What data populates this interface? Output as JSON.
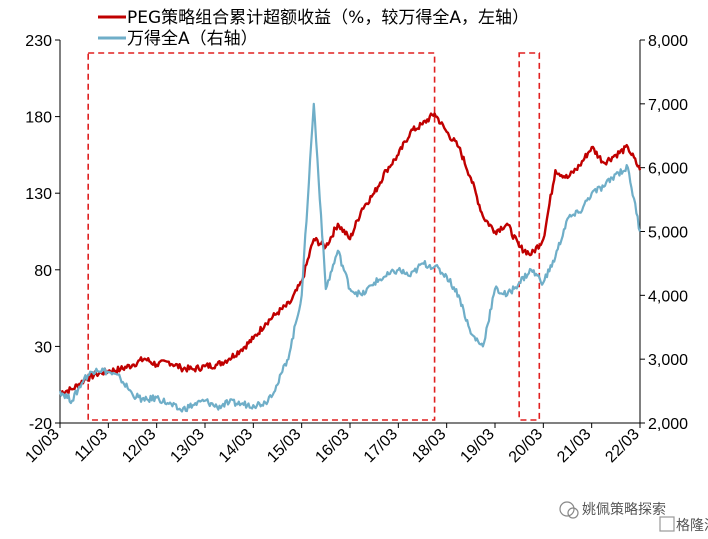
{
  "chart_data": {
    "type": "line",
    "x_ticks": [
      "10/03",
      "11/03",
      "12/03",
      "13/03",
      "14/03",
      "15/03",
      "16/03",
      "17/03",
      "18/03",
      "19/03",
      "20/03",
      "21/03",
      "22/03"
    ],
    "y_left": {
      "ticks": [
        -20,
        30,
        80,
        130,
        180,
        230
      ],
      "range": [
        -20,
        230
      ]
    },
    "y_right": {
      "ticks": [
        "2,000",
        "3,000",
        "4,000",
        "5,000",
        "6,000",
        "7,000",
        "8,000"
      ],
      "range": [
        2000,
        8000
      ]
    },
    "series": [
      {
        "name": "PEG策略组合累计超额收益（%，较万得全A，左轴）",
        "axis": "left",
        "color": "#C00000",
        "points": [
          [
            "2010-03",
            0
          ],
          [
            "2010-06",
            2
          ],
          [
            "2010-09",
            8
          ],
          [
            "2010-12",
            12
          ],
          [
            "2011-03",
            14
          ],
          [
            "2011-06",
            15
          ],
          [
            "2011-09",
            18
          ],
          [
            "2011-12",
            22
          ],
          [
            "2012-03",
            18
          ],
          [
            "2012-06",
            20
          ],
          [
            "2012-09",
            16
          ],
          [
            "2012-12",
            15
          ],
          [
            "2013-03",
            17
          ],
          [
            "2013-06",
            18
          ],
          [
            "2013-09",
            22
          ],
          [
            "2013-12",
            28
          ],
          [
            "2014-03",
            35
          ],
          [
            "2014-06",
            45
          ],
          [
            "2014-09",
            52
          ],
          [
            "2014-12",
            58
          ],
          [
            "2015-03",
            72
          ],
          [
            "2015-06",
            100
          ],
          [
            "2015-09",
            95
          ],
          [
            "2015-12",
            110
          ],
          [
            "2016-03",
            100
          ],
          [
            "2016-06",
            120
          ],
          [
            "2016-09",
            130
          ],
          [
            "2016-12",
            145
          ],
          [
            "2017-03",
            155
          ],
          [
            "2017-06",
            170
          ],
          [
            "2017-09",
            175
          ],
          [
            "2017-12",
            182
          ],
          [
            "2018-03",
            170
          ],
          [
            "2018-06",
            160
          ],
          [
            "2018-09",
            140
          ],
          [
            "2018-12",
            115
          ],
          [
            "2019-03",
            105
          ],
          [
            "2019-06",
            110
          ],
          [
            "2019-09",
            95
          ],
          [
            "2019-12",
            90
          ],
          [
            "2020-03",
            100
          ],
          [
            "2020-06",
            145
          ],
          [
            "2020-09",
            140
          ],
          [
            "2020-12",
            148
          ],
          [
            "2021-03",
            160
          ],
          [
            "2021-06",
            150
          ],
          [
            "2021-09",
            155
          ],
          [
            "2021-12",
            160
          ],
          [
            "2022-03",
            145
          ]
        ]
      },
      {
        "name": "万得全A（右轴）",
        "axis": "right",
        "color": "#6FAEC8",
        "points": [
          [
            "2010-03",
            2500
          ],
          [
            "2010-06",
            2350
          ],
          [
            "2010-09",
            2700
          ],
          [
            "2010-12",
            2850
          ],
          [
            "2011-03",
            2800
          ],
          [
            "2011-06",
            2700
          ],
          [
            "2011-09",
            2450
          ],
          [
            "2011-12",
            2350
          ],
          [
            "2012-03",
            2400
          ],
          [
            "2012-06",
            2300
          ],
          [
            "2012-09",
            2200
          ],
          [
            "2012-12",
            2280
          ],
          [
            "2013-03",
            2350
          ],
          [
            "2013-06",
            2250
          ],
          [
            "2013-09",
            2320
          ],
          [
            "2013-12",
            2300
          ],
          [
            "2014-03",
            2280
          ],
          [
            "2014-06",
            2320
          ],
          [
            "2014-09",
            2600
          ],
          [
            "2014-12",
            3100
          ],
          [
            "2015-03",
            4000
          ],
          [
            "2015-06",
            7000
          ],
          [
            "2015-09",
            4100
          ],
          [
            "2015-12",
            4700
          ],
          [
            "2016-03",
            4100
          ],
          [
            "2016-06",
            4000
          ],
          [
            "2016-09",
            4200
          ],
          [
            "2016-12",
            4300
          ],
          [
            "2017-03",
            4400
          ],
          [
            "2017-06",
            4300
          ],
          [
            "2017-09",
            4500
          ],
          [
            "2017-12",
            4450
          ],
          [
            "2018-03",
            4300
          ],
          [
            "2018-06",
            4000
          ],
          [
            "2018-09",
            3400
          ],
          [
            "2018-12",
            3200
          ],
          [
            "2019-03",
            4100
          ],
          [
            "2019-06",
            4000
          ],
          [
            "2019-09",
            4200
          ],
          [
            "2019-12",
            4400
          ],
          [
            "2020-03",
            4200
          ],
          [
            "2020-06",
            4600
          ],
          [
            "2020-09",
            5200
          ],
          [
            "2020-12",
            5300
          ],
          [
            "2021-03",
            5600
          ],
          [
            "2021-06",
            5700
          ],
          [
            "2021-09",
            5900
          ],
          [
            "2021-12",
            6000
          ],
          [
            "2022-03",
            5000
          ]
        ]
      }
    ],
    "highlight_boxes": [
      {
        "from": "2010-10",
        "to": "2017-12"
      },
      {
        "from": "2019-09",
        "to": "2020-02"
      }
    ],
    "legend_position": "top-left",
    "grid": false
  },
  "watermark": {
    "text": "姚佩策略探索",
    "logo_text": "格隆汇"
  },
  "colors": {
    "red": "#C00000",
    "blue": "#6FAEC8",
    "box": "#E02020"
  }
}
